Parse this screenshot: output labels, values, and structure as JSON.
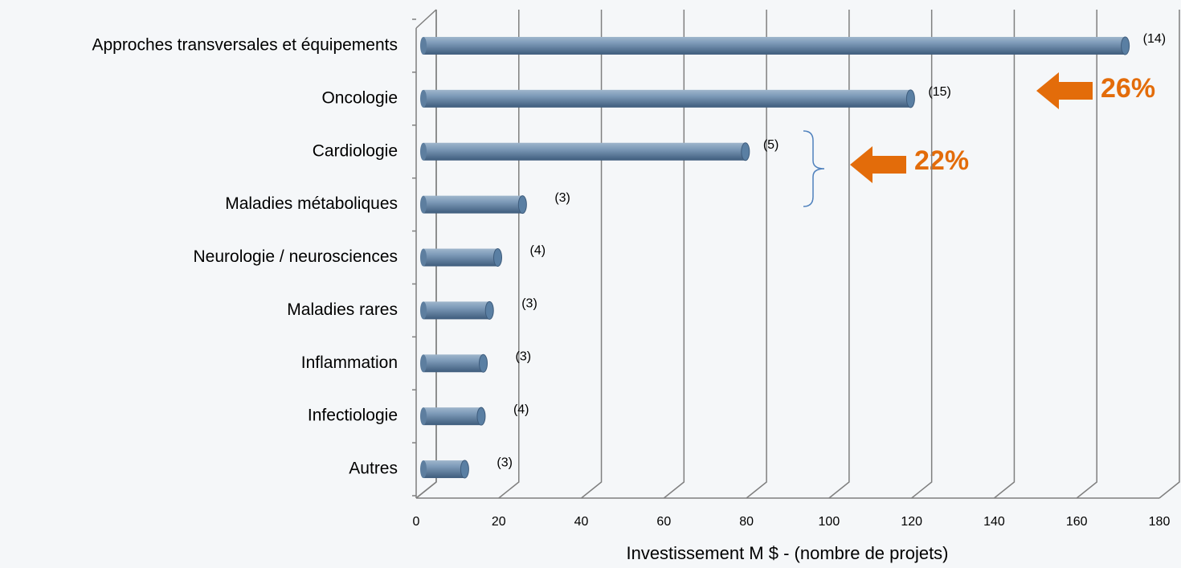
{
  "chart_data": {
    "type": "bar",
    "orientation": "horizontal",
    "x_label": "Investissement M $ - (nombre de projets)",
    "categories": [
      "Approches transversales et équipements",
      "Oncologie",
      "Cardiologie",
      "Maladies métaboliques",
      "Neurologie / neurosciences",
      "Maladies rares",
      "Inflammation",
      "Infectiologie",
      "Autres"
    ],
    "values": [
      170,
      118,
      78,
      24,
      18,
      16,
      14.5,
      14,
      10
    ],
    "project_counts": [
      "(14)",
      "(15)",
      "(5)",
      "(3)",
      "(4)",
      "(3)",
      "(3)",
      "(4)",
      "(3)"
    ],
    "color": "#5a7fa3",
    "xlim": [
      0,
      180
    ],
    "xticks": [
      0,
      20,
      40,
      60,
      80,
      100,
      120,
      140,
      160,
      180
    ],
    "grid": true,
    "annotations": [
      {
        "text": "26%"
      },
      {
        "text": "22%"
      }
    ]
  }
}
